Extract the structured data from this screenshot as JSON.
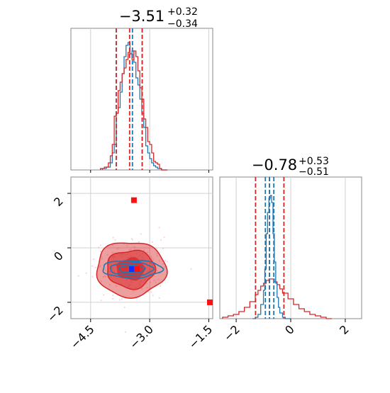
{
  "chart_data": {
    "type": "corner",
    "parameters": [
      {
        "title": {
          "median": "−3.51",
          "plus": "+0.32",
          "minus": "−0.34"
        },
        "range": [
          -5.0,
          -1.4
        ],
        "ticks": [
          {
            "value": -4.5,
            "label": "−4.5"
          },
          {
            "value": -3.0,
            "label": "−3.0"
          },
          {
            "value": -1.5,
            "label": "−1.5"
          }
        ]
      },
      {
        "title": {
          "median": "−0.78",
          "plus": "+0.53",
          "minus": "−0.51"
        },
        "range": [
          -2.6,
          2.6
        ],
        "ticks": [
          {
            "value": -2,
            "label": "−2"
          },
          {
            "value": 0,
            "label": "0"
          },
          {
            "value": 2,
            "label": "2"
          }
        ]
      }
    ],
    "series": [
      {
        "color": "#1f77b4",
        "marginal_1": {
          "x": [
            -4.2,
            -4.1,
            -4.0,
            -3.95,
            -3.9,
            -3.85,
            -3.8,
            -3.75,
            -3.7,
            -3.65,
            -3.6,
            -3.55,
            -3.5,
            -3.45,
            -3.4,
            -3.35,
            -3.3,
            -3.25,
            -3.2,
            -3.15,
            -3.1,
            -3.05,
            -3.0,
            -2.95,
            -2.9,
            -2.85,
            -2.8,
            -2.7
          ],
          "y": [
            0.01,
            0.02,
            0.05,
            0.12,
            0.18,
            0.4,
            0.44,
            0.55,
            0.68,
            0.8,
            0.88,
            0.9,
            0.82,
            0.84,
            0.76,
            0.65,
            0.6,
            0.5,
            0.4,
            0.3,
            0.17,
            0.12,
            0.08,
            0.05,
            0.03,
            0.02,
            0.01,
            0.0
          ]
        },
        "quantiles_1": [
          -3.85,
          -3.51,
          -3.19
        ],
        "marginal_2": {
          "x": [
            -1.4,
            -1.3,
            -1.2,
            -1.1,
            -1.0,
            -0.95,
            -0.9,
            -0.85,
            -0.8,
            -0.75,
            -0.7,
            -0.65,
            -0.6,
            -0.55,
            -0.5,
            -0.45,
            -0.4,
            -0.3,
            -0.2
          ],
          "y": [
            0.0,
            0.01,
            0.03,
            0.1,
            0.2,
            0.35,
            0.6,
            0.75,
            0.85,
            0.87,
            0.82,
            0.6,
            0.4,
            0.25,
            0.15,
            0.08,
            0.04,
            0.01,
            0.0
          ]
        },
        "quantiles_2": [
          -0.93,
          -0.78,
          -0.62
        ],
        "contour_center": [
          -3.45,
          -0.78
        ],
        "contour_spread": [
          0.38,
          0.16
        ],
        "best_fit": [
          -3.45,
          -0.78
        ]
      },
      {
        "color": "#d62728",
        "marginal_1": {
          "x": [
            -4.25,
            -4.15,
            -4.05,
            -4.0,
            -3.95,
            -3.9,
            -3.85,
            -3.8,
            -3.75,
            -3.7,
            -3.65,
            -3.6,
            -3.55,
            -3.5,
            -3.45,
            -3.4,
            -3.35,
            -3.3,
            -3.25,
            -3.2,
            -3.15,
            -3.1,
            -3.05,
            -3.0,
            -2.95,
            -2.9,
            -2.85,
            -2.8,
            -2.75,
            -2.7
          ],
          "y": [
            0.01,
            0.02,
            0.05,
            0.1,
            0.18,
            0.38,
            0.4,
            0.56,
            0.62,
            0.68,
            0.72,
            0.78,
            0.83,
            0.82,
            0.78,
            0.84,
            0.8,
            0.7,
            0.58,
            0.5,
            0.36,
            0.3,
            0.2,
            0.18,
            0.12,
            0.06,
            0.05,
            0.04,
            0.01,
            0.0
          ]
        },
        "quantiles_1": [
          -3.85,
          -3.51,
          -3.19
        ],
        "marginal_2": {
          "x": [
            -2.5,
            -2.3,
            -2.1,
            -1.9,
            -1.7,
            -1.5,
            -1.3,
            -1.2,
            -1.1,
            -1.0,
            -0.9,
            -0.8,
            -0.7,
            -0.6,
            -0.5,
            -0.4,
            -0.3,
            -0.1,
            0.1,
            0.3,
            0.5,
            0.7,
            0.9,
            1.1,
            1.3
          ],
          "y": [
            0.01,
            0.02,
            0.03,
            0.05,
            0.08,
            0.12,
            0.17,
            0.2,
            0.23,
            0.25,
            0.27,
            0.28,
            0.28,
            0.26,
            0.24,
            0.21,
            0.18,
            0.14,
            0.1,
            0.07,
            0.05,
            0.03,
            0.02,
            0.01,
            0.0
          ]
        },
        "quantiles_2": [
          -1.29,
          -0.78,
          -0.25
        ],
        "contour_center": [
          -3.48,
          -0.78
        ],
        "contour_spread": [
          0.42,
          0.48
        ],
        "best_fit": [
          -3.45,
          -0.78
        ],
        "outliers": [
          [
            -3.4,
            1.75
          ],
          [
            -1.4,
            -2.0
          ]
        ]
      }
    ],
    "grid": true
  }
}
